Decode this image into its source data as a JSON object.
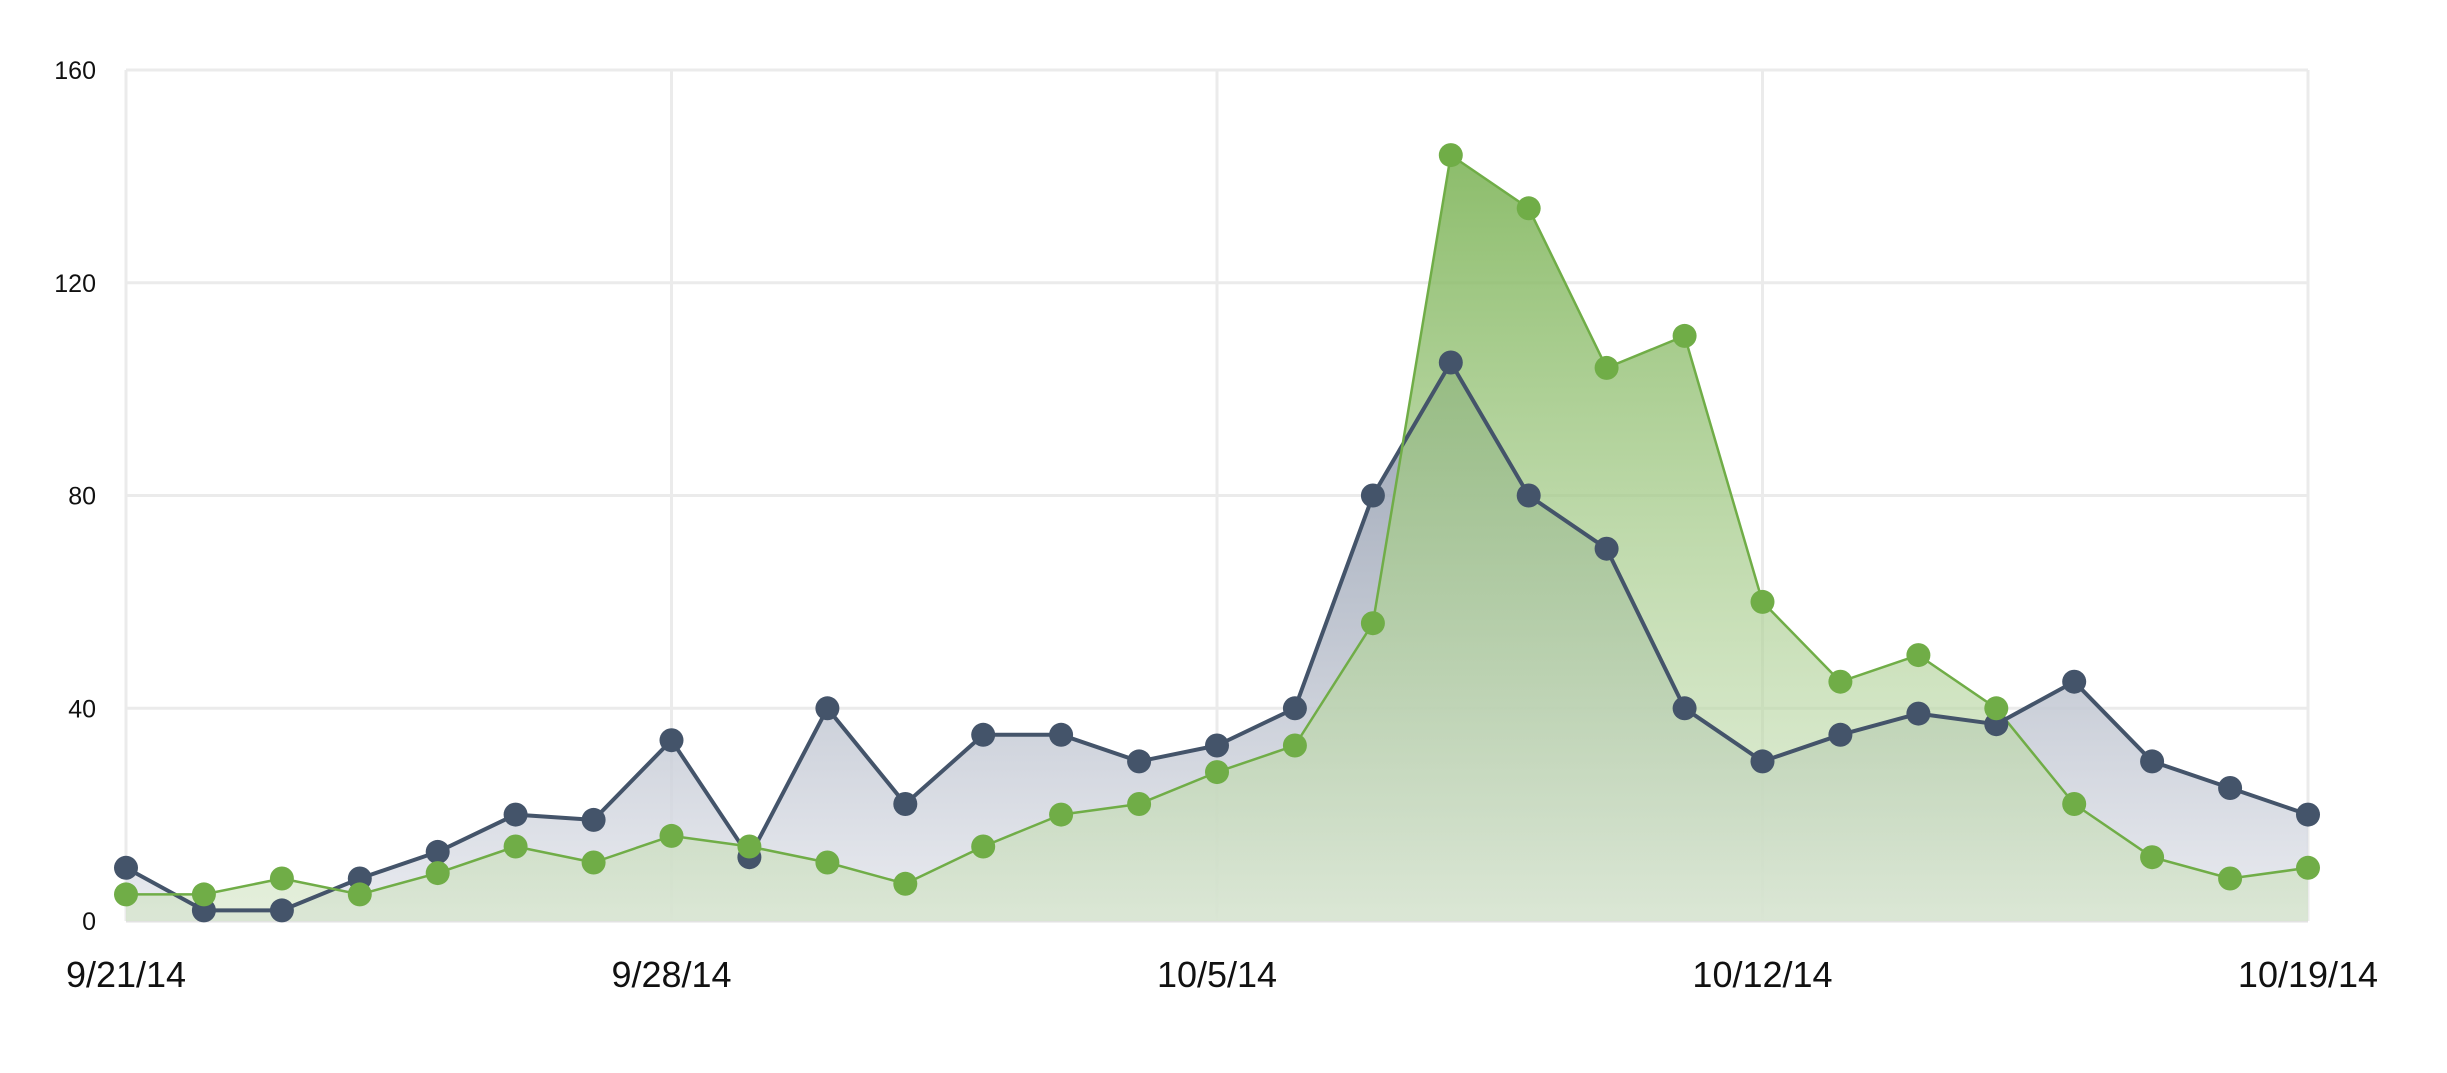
{
  "chart_data": {
    "type": "area",
    "xlabel": "",
    "ylabel": "",
    "ylim": [
      0,
      160
    ],
    "y_ticks": [
      0,
      40,
      80,
      120,
      160
    ],
    "x_range": [
      "2014-09-21",
      "2014-10-19"
    ],
    "x_tick_labels": [
      "9/21/14",
      "9/28/14",
      "10/5/14",
      "10/12/14",
      "10/19/14"
    ],
    "grid": true,
    "legend": "none",
    "x": [
      "2014-09-21",
      "2014-09-22",
      "2014-09-23",
      "2014-09-24",
      "2014-09-25",
      "2014-09-26",
      "2014-09-27",
      "2014-09-28",
      "2014-09-29",
      "2014-09-30",
      "2014-10-01",
      "2014-10-02",
      "2014-10-03",
      "2014-10-04",
      "2014-10-05",
      "2014-10-06",
      "2014-10-07",
      "2014-10-08",
      "2014-10-09",
      "2014-10-10",
      "2014-10-11",
      "2014-10-12",
      "2014-10-13",
      "2014-10-14",
      "2014-10-15",
      "2014-10-16",
      "2014-10-17",
      "2014-10-18",
      "2014-10-19"
    ],
    "series": [
      {
        "color": "#44546a",
        "values": [
          10,
          2,
          2,
          8,
          13,
          20,
          19,
          34,
          12,
          40,
          22,
          35,
          35,
          30,
          33,
          40,
          80,
          105,
          80,
          70,
          40,
          30,
          35,
          39,
          37,
          45,
          30,
          25,
          20
        ]
      },
      {
        "color": "#70ad47",
        "values": [
          5,
          5,
          8,
          5,
          9,
          14,
          11,
          16,
          14,
          11,
          7,
          14,
          20,
          22,
          28,
          33,
          56,
          144,
          134,
          104,
          110,
          60,
          45,
          50,
          40,
          22,
          12,
          8,
          10
        ]
      }
    ]
  }
}
